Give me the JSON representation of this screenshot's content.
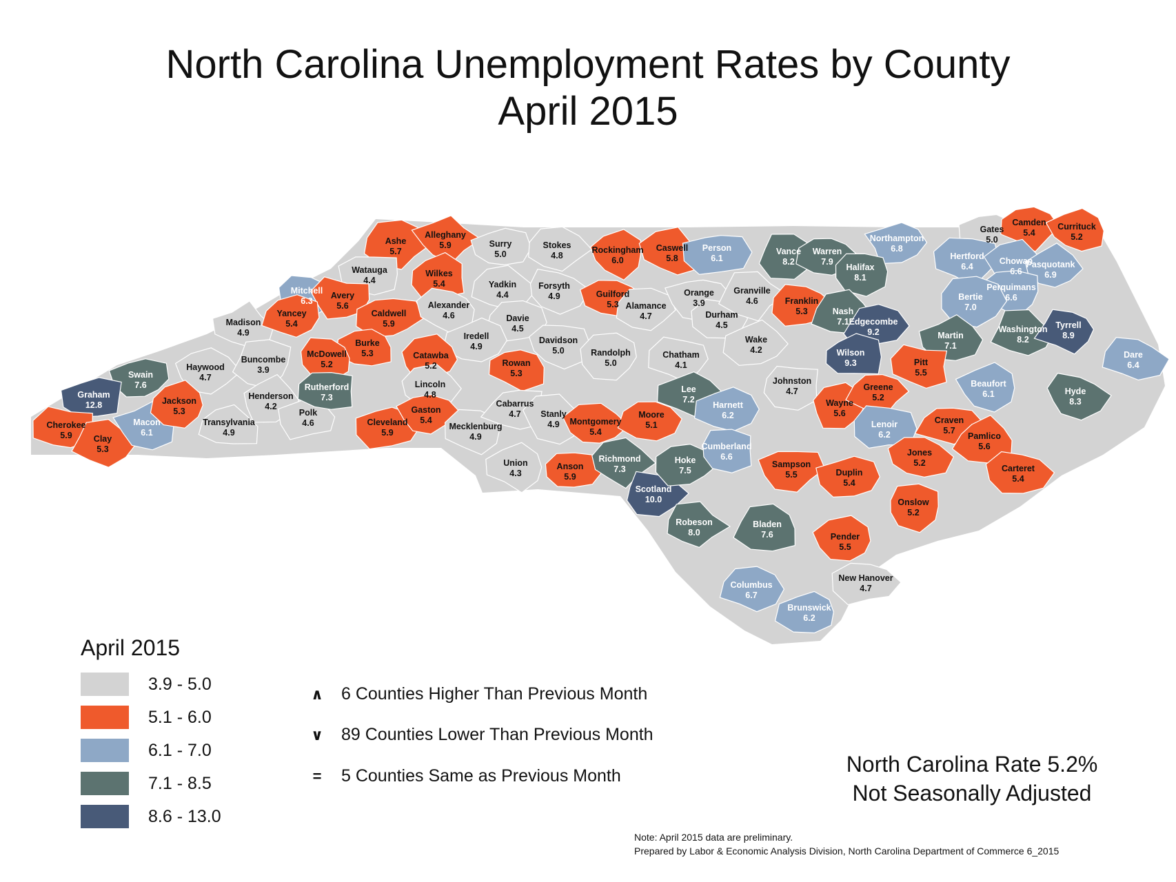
{
  "title": {
    "line1": "North Carolina Unemployment Rates by County",
    "line2": "April 2015"
  },
  "colors": {
    "bin1": "#d3d3d3",
    "bin2": "#ef5a2c",
    "bin3": "#8ea8c6",
    "bin4": "#5c7370",
    "bin5": "#485a78",
    "border": "#ffffff"
  },
  "legend": {
    "title": "April 2015",
    "items": [
      {
        "label": "3.9 - 5.0",
        "color": "#d3d3d3"
      },
      {
        "label": "5.1 - 6.0",
        "color": "#ef5a2c"
      },
      {
        "label": "6.1 - 7.0",
        "color": "#8ea8c6"
      },
      {
        "label": "7.1 - 8.5",
        "color": "#5c7370"
      },
      {
        "label": "8.6 - 13.0",
        "color": "#485a78"
      }
    ]
  },
  "changes": [
    {
      "symbol": "∧",
      "text": "6 Counties Higher Than Previous Month"
    },
    {
      "symbol": "∨",
      "text": "89 Counties Lower Than Previous Month"
    },
    {
      "symbol": "=",
      "text": "5 Counties Same as Previous Month"
    }
  ],
  "state_rate": {
    "line1": "North Carolina Rate 5.2%",
    "line2": "Not Seasonally Adjusted"
  },
  "notes": {
    "line1": "Note: April 2015 data are preliminary.",
    "line2": "Prepared by Labor & Economic Analysis Division, North Carolina Department of Commerce 6_2015"
  },
  "counties": [
    {
      "name": "Ashe",
      "rate": "5.7",
      "bin": 2
    },
    {
      "name": "Alleghany",
      "rate": "5.9",
      "bin": 2
    },
    {
      "name": "Surry",
      "rate": "5.0",
      "bin": 1
    },
    {
      "name": "Stokes",
      "rate": "4.8",
      "bin": 1
    },
    {
      "name": "Rockingham",
      "rate": "6.0",
      "bin": 2
    },
    {
      "name": "Caswell",
      "rate": "5.8",
      "bin": 2
    },
    {
      "name": "Person",
      "rate": "6.1",
      "bin": 3
    },
    {
      "name": "Vance",
      "rate": "8.2",
      "bin": 4
    },
    {
      "name": "Warren",
      "rate": "7.9",
      "bin": 4
    },
    {
      "name": "Northampton",
      "rate": "6.8",
      "bin": 3
    },
    {
      "name": "Gates",
      "rate": "5.0",
      "bin": 1
    },
    {
      "name": "Camden",
      "rate": "5.4",
      "bin": 2
    },
    {
      "name": "Currituck",
      "rate": "5.2",
      "bin": 2
    },
    {
      "name": "Watauga",
      "rate": "4.4",
      "bin": 1
    },
    {
      "name": "Wilkes",
      "rate": "5.4",
      "bin": 2
    },
    {
      "name": "Yadkin",
      "rate": "4.4",
      "bin": 1
    },
    {
      "name": "Forsyth",
      "rate": "4.9",
      "bin": 1
    },
    {
      "name": "Guilford",
      "rate": "5.3",
      "bin": 2
    },
    {
      "name": "Alamance",
      "rate": "4.7",
      "bin": 1
    },
    {
      "name": "Orange",
      "rate": "3.9",
      "bin": 1
    },
    {
      "name": "Durham",
      "rate": "4.5",
      "bin": 1
    },
    {
      "name": "Granville",
      "rate": "4.6",
      "bin": 1
    },
    {
      "name": "Franklin",
      "rate": "5.3",
      "bin": 2
    },
    {
      "name": "Halifax",
      "rate": "8.1",
      "bin": 4
    },
    {
      "name": "Hertford",
      "rate": "6.4",
      "bin": 3
    },
    {
      "name": "Chowan",
      "rate": "6.6",
      "bin": 3
    },
    {
      "name": "Pasquotank",
      "rate": "6.9",
      "bin": 3
    },
    {
      "name": "Perquimans",
      "rate": "6.6",
      "bin": 3
    },
    {
      "name": "Bertie",
      "rate": "7.0",
      "bin": 3
    },
    {
      "name": "Mitchell",
      "rate": "6.3",
      "bin": 3
    },
    {
      "name": "Avery",
      "rate": "5.6",
      "bin": 2
    },
    {
      "name": "Caldwell",
      "rate": "5.9",
      "bin": 2
    },
    {
      "name": "Alexander",
      "rate": "4.6",
      "bin": 1
    },
    {
      "name": "Davie",
      "rate": "4.5",
      "bin": 1
    },
    {
      "name": "Iredell",
      "rate": "4.9",
      "bin": 1
    },
    {
      "name": "Davidson",
      "rate": "5.0",
      "bin": 1
    },
    {
      "name": "Randolph",
      "rate": "5.0",
      "bin": 1
    },
    {
      "name": "Chatham",
      "rate": "4.1",
      "bin": 1
    },
    {
      "name": "Wake",
      "rate": "4.2",
      "bin": 1
    },
    {
      "name": "Nash",
      "rate": "7.1",
      "bin": 4
    },
    {
      "name": "Edgecombe",
      "rate": "9.2",
      "bin": 5
    },
    {
      "name": "Martin",
      "rate": "7.1",
      "bin": 4
    },
    {
      "name": "Washington",
      "rate": "8.2",
      "bin": 4
    },
    {
      "name": "Tyrrell",
      "rate": "8.9",
      "bin": 5
    },
    {
      "name": "Dare",
      "rate": "6.4",
      "bin": 3
    },
    {
      "name": "Madison",
      "rate": "4.9",
      "bin": 1
    },
    {
      "name": "Yancey",
      "rate": "5.4",
      "bin": 2
    },
    {
      "name": "Burke",
      "rate": "5.3",
      "bin": 2
    },
    {
      "name": "McDowell",
      "rate": "5.2",
      "bin": 2
    },
    {
      "name": "Catawba",
      "rate": "5.2",
      "bin": 2
    },
    {
      "name": "Rowan",
      "rate": "5.3",
      "bin": 2
    },
    {
      "name": "Wilson",
      "rate": "9.3",
      "bin": 5
    },
    {
      "name": "Pitt",
      "rate": "5.5",
      "bin": 2
    },
    {
      "name": "Beaufort",
      "rate": "6.1",
      "bin": 3
    },
    {
      "name": "Hyde",
      "rate": "8.3",
      "bin": 4
    },
    {
      "name": "Swain",
      "rate": "7.6",
      "bin": 4
    },
    {
      "name": "Haywood",
      "rate": "4.7",
      "bin": 1
    },
    {
      "name": "Buncombe",
      "rate": "3.9",
      "bin": 1
    },
    {
      "name": "Graham",
      "rate": "12.8",
      "bin": 5
    },
    {
      "name": "Cherokee",
      "rate": "5.9",
      "bin": 2
    },
    {
      "name": "Clay",
      "rate": "5.3",
      "bin": 2
    },
    {
      "name": "Macon",
      "rate": "6.1",
      "bin": 3
    },
    {
      "name": "Jackson",
      "rate": "5.3",
      "bin": 2
    },
    {
      "name": "Transylvania",
      "rate": "4.9",
      "bin": 1
    },
    {
      "name": "Henderson",
      "rate": "4.2",
      "bin": 1
    },
    {
      "name": "Polk",
      "rate": "4.6",
      "bin": 1
    },
    {
      "name": "Rutherford",
      "rate": "7.3",
      "bin": 4
    },
    {
      "name": "Cleveland",
      "rate": "5.9",
      "bin": 2
    },
    {
      "name": "Lincoln",
      "rate": "4.8",
      "bin": 1
    },
    {
      "name": "Gaston",
      "rate": "5.4",
      "bin": 2
    },
    {
      "name": "Mecklenburg",
      "rate": "4.9",
      "bin": 1
    },
    {
      "name": "Cabarrus",
      "rate": "4.7",
      "bin": 1
    },
    {
      "name": "Stanly",
      "rate": "4.9",
      "bin": 1
    },
    {
      "name": "Union",
      "rate": "4.3",
      "bin": 1
    },
    {
      "name": "Anson",
      "rate": "5.9",
      "bin": 2
    },
    {
      "name": "Montgomery",
      "rate": "5.4",
      "bin": 2
    },
    {
      "name": "Moore",
      "rate": "5.1",
      "bin": 2
    },
    {
      "name": "Richmond",
      "rate": "7.3",
      "bin": 4
    },
    {
      "name": "Scotland",
      "rate": "10.0",
      "bin": 5
    },
    {
      "name": "Hoke",
      "rate": "7.5",
      "bin": 4
    },
    {
      "name": "Lee",
      "rate": "7.2",
      "bin": 4
    },
    {
      "name": "Harnett",
      "rate": "6.2",
      "bin": 3
    },
    {
      "name": "Johnston",
      "rate": "4.7",
      "bin": 1
    },
    {
      "name": "Wayne",
      "rate": "5.6",
      "bin": 2
    },
    {
      "name": "Greene",
      "rate": "5.2",
      "bin": 2
    },
    {
      "name": "Lenoir",
      "rate": "6.2",
      "bin": 3
    },
    {
      "name": "Craven",
      "rate": "5.7",
      "bin": 2
    },
    {
      "name": "Pamlico",
      "rate": "5.6",
      "bin": 2
    },
    {
      "name": "Jones",
      "rate": "5.2",
      "bin": 2
    },
    {
      "name": "Carteret",
      "rate": "5.4",
      "bin": 2
    },
    {
      "name": "Cumberland",
      "rate": "6.6",
      "bin": 3
    },
    {
      "name": "Sampson",
      "rate": "5.5",
      "bin": 2
    },
    {
      "name": "Duplin",
      "rate": "5.4",
      "bin": 2
    },
    {
      "name": "Onslow",
      "rate": "5.2",
      "bin": 2
    },
    {
      "name": "Robeson",
      "rate": "8.0",
      "bin": 4
    },
    {
      "name": "Bladen",
      "rate": "7.6",
      "bin": 4
    },
    {
      "name": "Pender",
      "rate": "5.5",
      "bin": 2
    },
    {
      "name": "Columbus",
      "rate": "6.7",
      "bin": 3
    },
    {
      "name": "Brunswick",
      "rate": "6.2",
      "bin": 3
    },
    {
      "name": "New Hanover",
      "rate": "4.7",
      "bin": 1
    }
  ]
}
